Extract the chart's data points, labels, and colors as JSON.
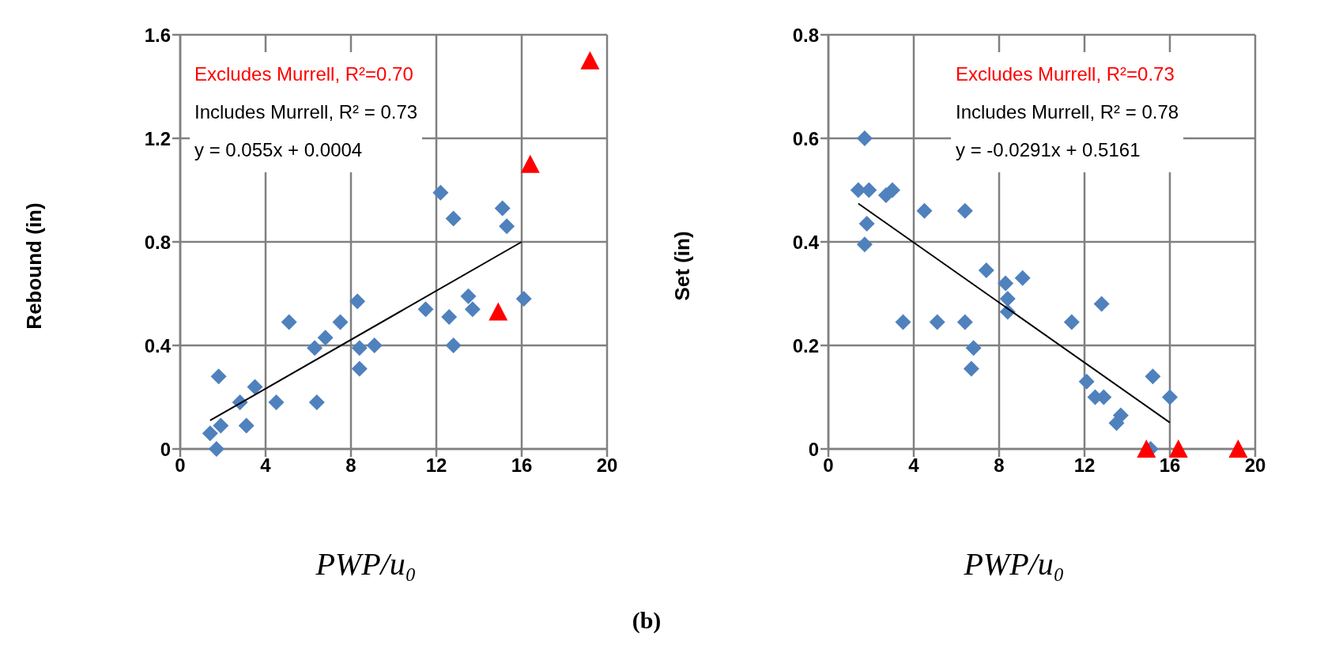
{
  "chart_data": [
    {
      "type": "scatter",
      "xlabel": "PWP/u₀",
      "ylabel": "Rebound (in)",
      "xlim": [
        0,
        20
      ],
      "xticks": [
        0,
        4,
        8,
        12,
        16,
        20
      ],
      "ylim": [
        0,
        1.6
      ],
      "yticks": [
        0,
        0.4,
        0.8,
        1.2,
        1.6
      ],
      "grid": true,
      "annotations": [
        "Excludes Murrell, R²=0.70",
        "Includes Murrell, R² = 0.73",
        "y = 0.055x + 0.0004",
        "(b)"
      ],
      "series": [
        {
          "type": "scatter",
          "marker": "diamond",
          "color": "#4f81bd",
          "x": [
            1.4,
            1.9,
            1.7,
            1.8,
            2.8,
            3.1,
            3.5,
            4.5,
            5.1,
            6.4,
            6.3,
            6.8,
            7.5,
            8.3,
            8.4,
            8.4,
            9.1,
            11.5,
            12.2,
            12.6,
            12.8,
            12.8,
            13.5,
            13.7,
            15.1,
            15.3,
            16.1
          ],
          "values": [
            0.06,
            0.09,
            0,
            0.28,
            0.18,
            0.09,
            0.24,
            0.18,
            0.49,
            0.18,
            0.39,
            0.43,
            0.49,
            0.57,
            0.39,
            0.31,
            0.4,
            0.54,
            0.99,
            0.51,
            0.89,
            0.4,
            0.59,
            0.54,
            0.93,
            0.86,
            0.58
          ]
        },
        {
          "type": "scatter",
          "marker": "triangle",
          "color": "#ff0000",
          "x": [
            14.9,
            16.4,
            19.2
          ],
          "values": [
            0.53,
            1.1,
            1.5
          ]
        },
        {
          "type": "line",
          "marker": "none",
          "color": "#000000",
          "x": [
            1.4,
            16
          ],
          "values": [
            0.11,
            0.8
          ]
        }
      ]
    },
    {
      "type": "scatter",
      "xlabel": "PWP/u₀",
      "ylabel": "Set (in)",
      "xlim": [
        0,
        20
      ],
      "xticks": [
        0,
        4,
        8,
        12,
        16,
        20
      ],
      "ylim": [
        0,
        0.8
      ],
      "yticks": [
        0,
        0.2,
        0.4,
        0.6,
        0.8
      ],
      "grid": true,
      "annotations": [
        "Excludes Murrell, R²=0.73",
        "Includes Murrell, R² = 0.78",
        "y = -0.0291x + 0.5161"
      ],
      "series": [
        {
          "type": "scatter",
          "marker": "diamond",
          "color": "#4f81bd",
          "x": [
            1.7,
            1.4,
            1.9,
            2.7,
            3,
            1.8,
            1.7,
            4.5,
            6.4,
            3.5,
            5.1,
            6.4,
            6.8,
            6.7,
            7.4,
            8.3,
            8.4,
            8.4,
            9.1,
            11.4,
            12.8,
            12.1,
            12.5,
            12.9,
            13.5,
            13.7,
            15.2,
            16,
            15.1
          ],
          "values": [
            0.6,
            0.5,
            0.5,
            0.49,
            0.5,
            0.435,
            0.395,
            0.46,
            0.46,
            0.245,
            0.245,
            0.245,
            0.195,
            0.155,
            0.345,
            0.32,
            0.29,
            0.265,
            0.33,
            0.245,
            0.28,
            0.13,
            0.1,
            0.1,
            0.05,
            0.065,
            0.14,
            0.1,
            0
          ]
        },
        {
          "type": "scatter",
          "marker": "triangle",
          "color": "#ff0000",
          "x": [
            14.9,
            16.4,
            19.2
          ],
          "values": [
            0,
            0,
            0
          ]
        },
        {
          "type": "line",
          "marker": "none",
          "color": "#000000",
          "x": [
            1.4,
            16
          ],
          "values": [
            0.474,
            0.051
          ]
        }
      ]
    }
  ]
}
